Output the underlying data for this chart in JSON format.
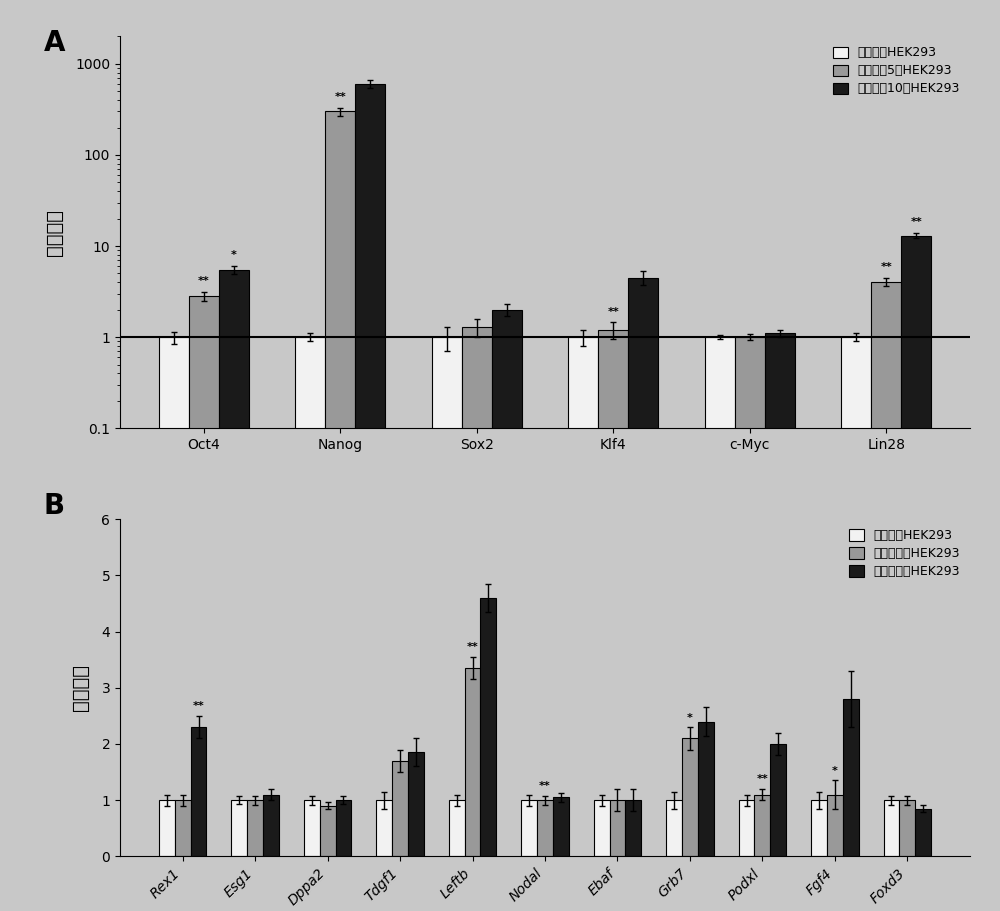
{
  "panel_A": {
    "categories": [
      "Oct4",
      "Nanog",
      "Sox2",
      "Klf4",
      "c-Myc",
      "Lin28"
    ],
    "mono": [
      1.0,
      1.0,
      1.0,
      1.0,
      1.0,
      1.0
    ],
    "day5": [
      2.8,
      300.0,
      1.3,
      1.2,
      1.0,
      4.0
    ],
    "day10": [
      5.5,
      600.0,
      2.0,
      4.5,
      1.1,
      13.0
    ],
    "mono_err": [
      0.15,
      0.1,
      0.3,
      0.2,
      0.05,
      0.1
    ],
    "day5_err": [
      0.3,
      30.0,
      0.3,
      0.25,
      0.08,
      0.4
    ],
    "day10_err": [
      0.6,
      60.0,
      0.3,
      0.8,
      0.1,
      0.8
    ],
    "ann_day5": [
      "**",
      "**",
      "",
      "**",
      "",
      "**"
    ],
    "ann_day10": [
      "*",
      "",
      "",
      "",
      "",
      "**"
    ],
    "ylabel": "倍数变化",
    "legend": [
      "单层培兿HEK293",
      "成球培兿5天HEK293",
      "成球培兿10天HEK293"
    ],
    "colors": [
      "#f2f2f2",
      "#999999",
      "#1a1a1a"
    ]
  },
  "panel_B": {
    "categories": [
      "Rex1",
      "Esg1",
      "Dppa2",
      "Tdgf1",
      "Leftb",
      "Nodal",
      "Ebaf",
      "Grb7",
      "Podxl",
      "Fgf4",
      "Foxd3"
    ],
    "mono": [
      1.0,
      1.0,
      1.0,
      1.0,
      1.0,
      1.0,
      1.0,
      1.0,
      1.0,
      1.0,
      1.0
    ],
    "day5": [
      1.0,
      1.0,
      0.9,
      1.7,
      3.35,
      1.0,
      1.0,
      2.1,
      1.1,
      1.1,
      1.0
    ],
    "day10": [
      2.3,
      1.1,
      1.0,
      1.85,
      4.6,
      1.05,
      1.0,
      2.4,
      2.0,
      2.8,
      0.85
    ],
    "mono_err": [
      0.1,
      0.07,
      0.08,
      0.15,
      0.1,
      0.1,
      0.1,
      0.15,
      0.1,
      0.15,
      0.08
    ],
    "day5_err": [
      0.1,
      0.08,
      0.06,
      0.2,
      0.2,
      0.08,
      0.2,
      0.2,
      0.1,
      0.25,
      0.08
    ],
    "day10_err": [
      0.2,
      0.1,
      0.07,
      0.25,
      0.25,
      0.08,
      0.2,
      0.25,
      0.2,
      0.5,
      0.06
    ],
    "ann_day5": [
      "",
      "",
      "",
      "",
      "**",
      "**",
      "",
      "*",
      "**",
      "*",
      ""
    ],
    "ann_day10": [
      "**",
      "",
      "",
      "",
      "",
      "",
      "",
      "",
      "",
      "",
      ""
    ],
    "ylabel": "倍数变化",
    "legend": [
      "单层培兿HEK293",
      "成球天培兿HEK293",
      "成球天培兿HEK293"
    ],
    "legend_b": [
      "单层培兿HEK293",
      "成球天培兿HEK293",
      "成球天培兿HEK293"
    ],
    "legend_b2": [
      "单层培兿HEK293",
      "成球天培兿HEK293",
      "成球天培兿HEK293"
    ],
    "colors": [
      "#f2f2f2",
      "#999999",
      "#1a1a1a"
    ],
    "ylim": [
      0,
      6
    ],
    "yticks": [
      0,
      1,
      2,
      3,
      4,
      5,
      6
    ]
  },
  "bg_color": "#c8c8c8",
  "plot_bg": "#c8c8c8",
  "panel_label_fs": 20,
  "axis_label_fs": 12,
  "tick_fs": 10,
  "legend_fs": 9,
  "bar_width": 0.22
}
